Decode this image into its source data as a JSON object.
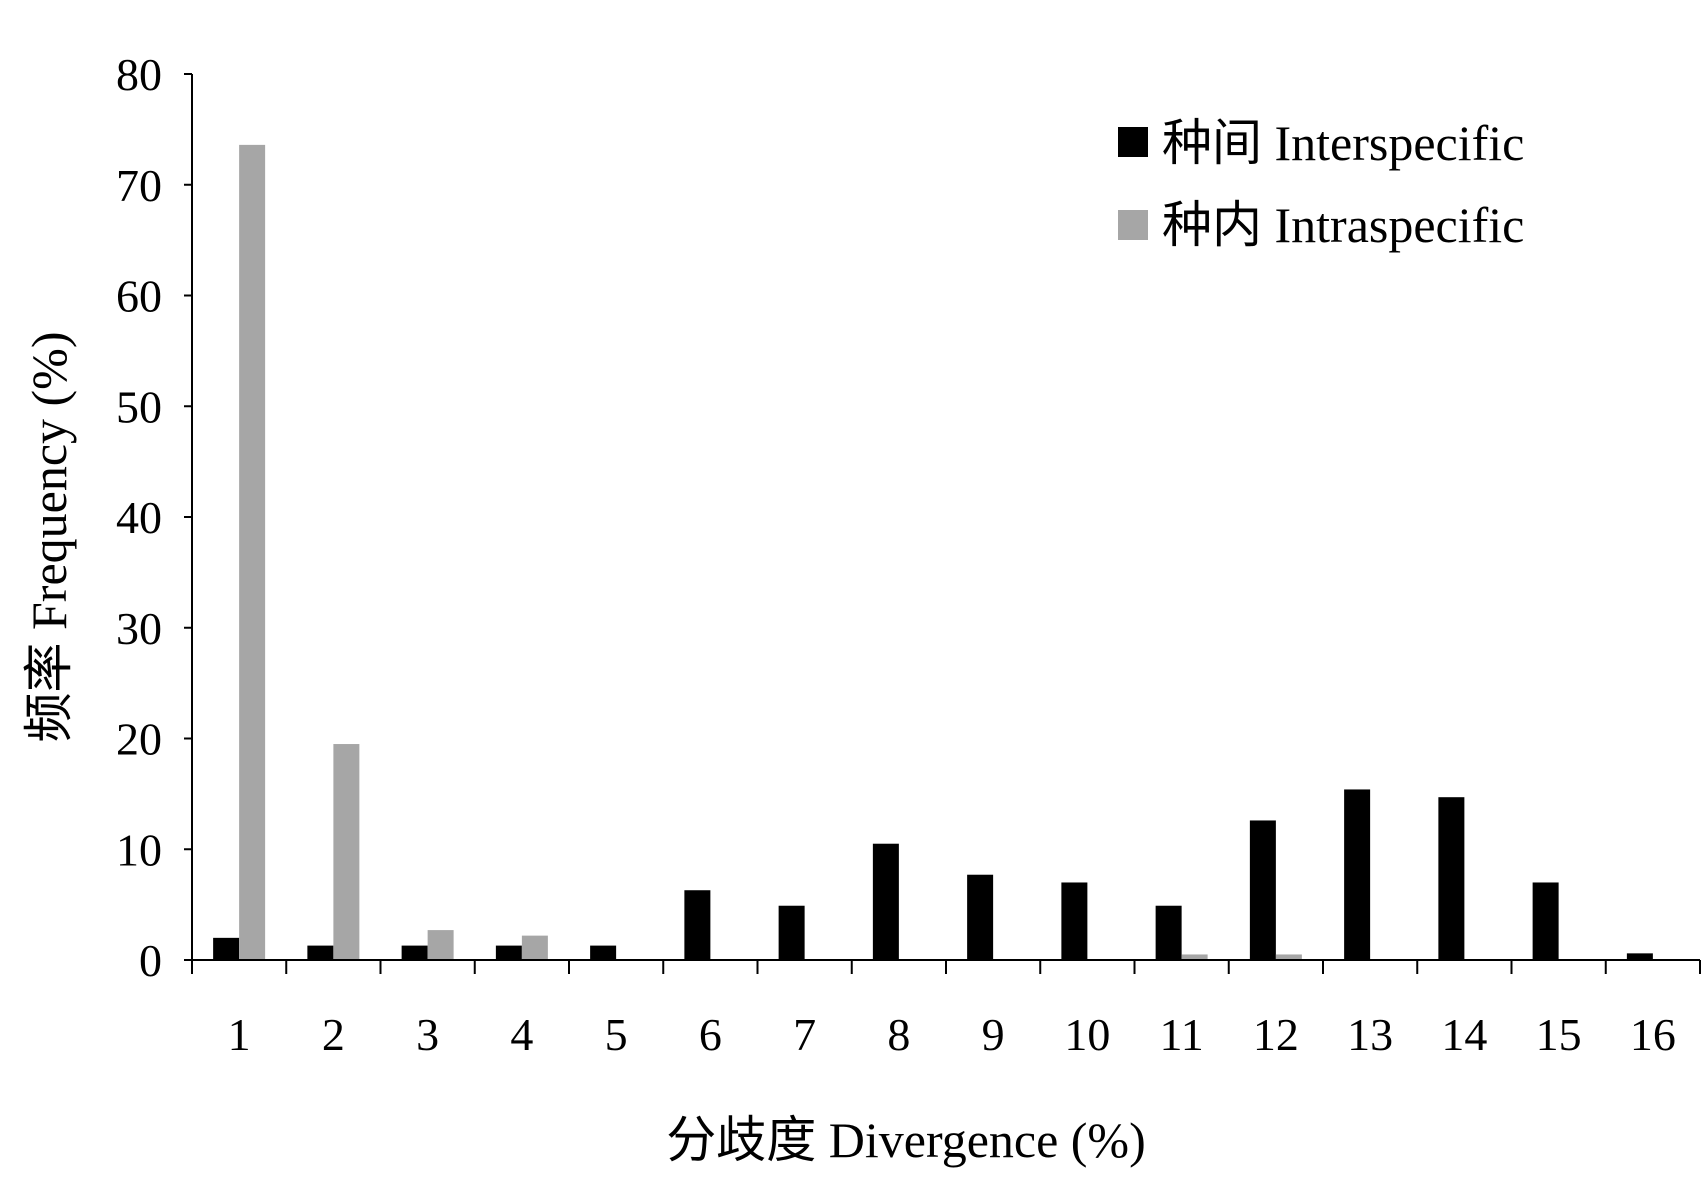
{
  "chart_data": {
    "type": "bar",
    "xlabel": "分歧度  Divergence (%)",
    "ylabel": "频率  Frequency (%)",
    "ylim": [
      0,
      80
    ],
    "yticks": [
      0,
      10,
      20,
      30,
      40,
      50,
      60,
      70,
      80
    ],
    "categories": [
      "1",
      "2",
      "3",
      "4",
      "5",
      "6",
      "7",
      "8",
      "9",
      "10",
      "11",
      "12",
      "13",
      "14",
      "15",
      "16"
    ],
    "series": [
      {
        "name": "种间 Interspecific",
        "color": "#000000",
        "values": [
          2.0,
          1.3,
          1.3,
          1.3,
          1.3,
          6.3,
          4.9,
          10.5,
          7.7,
          7.0,
          4.9,
          12.6,
          15.4,
          14.7,
          7.0,
          0.6
        ]
      },
      {
        "name": "种内 Intraspecific",
        "color": "#a6a6a6",
        "values": [
          73.6,
          19.5,
          2.7,
          2.2,
          0,
          0,
          0,
          0,
          0,
          0,
          0.5,
          0.5,
          0,
          0,
          0,
          0
        ]
      }
    ],
    "grid": false,
    "legend_position": "top-right"
  }
}
